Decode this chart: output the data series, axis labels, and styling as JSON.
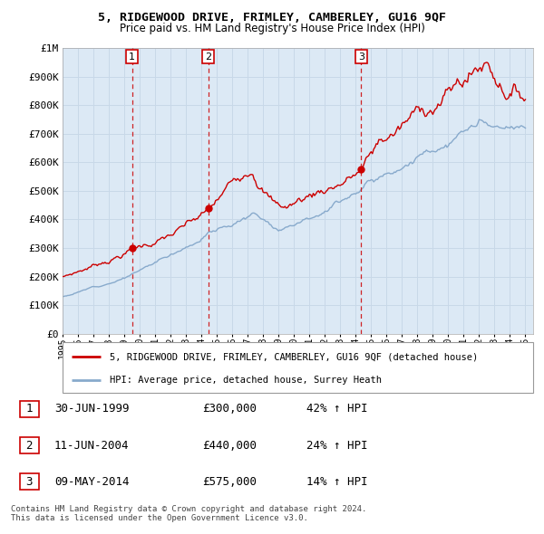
{
  "title": "5, RIDGEWOOD DRIVE, FRIMLEY, CAMBERLEY, GU16 9QF",
  "subtitle": "Price paid vs. HM Land Registry's House Price Index (HPI)",
  "background_color": "#dce9f5",
  "fig_bg_color": "#ffffff",
  "grid_color": "#c8d8e8",
  "ylim": [
    0,
    1000000
  ],
  "yticks": [
    0,
    100000,
    200000,
    300000,
    400000,
    500000,
    600000,
    700000,
    800000,
    900000,
    1000000
  ],
  "ytick_labels": [
    "£0",
    "£100K",
    "£200K",
    "£300K",
    "£400K",
    "£500K",
    "£600K",
    "£700K",
    "£800K",
    "£900K",
    "£1M"
  ],
  "xmin_year": 1995,
  "xmax_year": 2025.5,
  "sale_dates": [
    1999.5,
    2004.44,
    2014.36
  ],
  "sale_prices": [
    300000,
    440000,
    575000
  ],
  "sale_labels": [
    "1",
    "2",
    "3"
  ],
  "sale_date_strings": [
    "30-JUN-1999",
    "11-JUN-2004",
    "09-MAY-2014"
  ],
  "sale_price_strings": [
    "£300,000",
    "£440,000",
    "£575,000"
  ],
  "sale_hpi_strings": [
    "42% ↑ HPI",
    "24% ↑ HPI",
    "14% ↑ HPI"
  ],
  "line_color_red": "#cc0000",
  "line_color_blue": "#88aacc",
  "marker_color": "#cc0000",
  "dashed_color": "#cc0000",
  "legend_label_red": "5, RIDGEWOOD DRIVE, FRIMLEY, CAMBERLEY, GU16 9QF (detached house)",
  "legend_label_blue": "HPI: Average price, detached house, Surrey Heath",
  "footer_text": "Contains HM Land Registry data © Crown copyright and database right 2024.\nThis data is licensed under the Open Government Licence v3.0.",
  "xtick_years": [
    1995,
    1996,
    1997,
    1998,
    1999,
    2000,
    2001,
    2002,
    2003,
    2004,
    2005,
    2006,
    2007,
    2008,
    2009,
    2010,
    2011,
    2012,
    2013,
    2014,
    2015,
    2016,
    2017,
    2018,
    2019,
    2020,
    2021,
    2022,
    2023,
    2024,
    2025
  ]
}
